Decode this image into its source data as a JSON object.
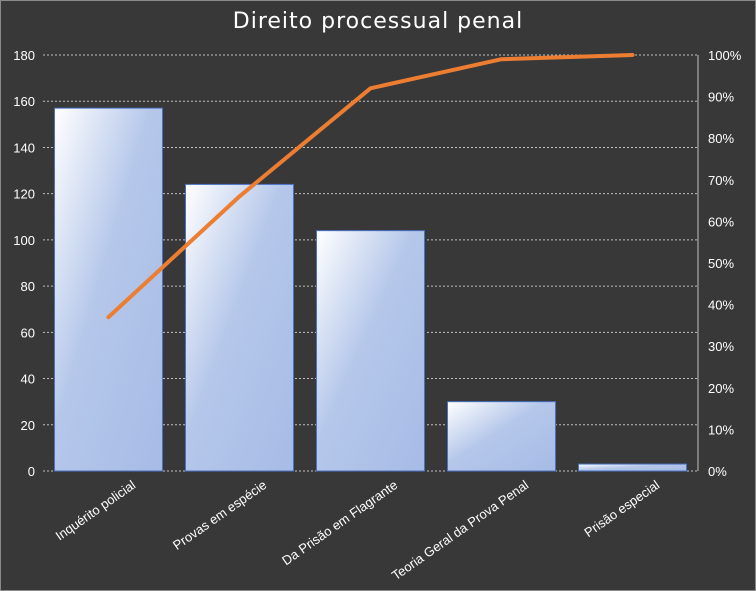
{
  "chart_data": {
    "type": "bar",
    "title": "Direito processual penal",
    "categories": [
      "Inquérito policial",
      "Provas em espécie",
      "Da Prisão em Flagrante",
      "Teoria Geral da Prova Penal",
      "Prisão especial"
    ],
    "series": [
      {
        "type": "bar",
        "values": [
          157,
          124,
          104,
          30,
          3
        ]
      },
      {
        "type": "line",
        "axis": "secondary",
        "values": [
          0.37,
          0.66,
          0.92,
          0.99,
          1.0
        ]
      }
    ],
    "ylim": [
      0,
      180
    ],
    "y_ticks": [
      "0",
      "20",
      "40",
      "60",
      "80",
      "100",
      "120",
      "140",
      "160",
      "180"
    ],
    "y2lim": [
      0,
      1
    ],
    "y2_ticks": [
      "0%",
      "10%",
      "20%",
      "30%",
      "40%",
      "50%",
      "60%",
      "70%",
      "80%",
      "90%",
      "100%"
    ],
    "grid": "horizontal dotted",
    "colors": {
      "background": "#383838",
      "bar_top": "#ffffff",
      "bar_bottom": "#a9bde6",
      "bar_border": "#4a72c4",
      "line": "#ed7d31",
      "grid": "#bfbfbf",
      "text": "#ffffff"
    }
  }
}
